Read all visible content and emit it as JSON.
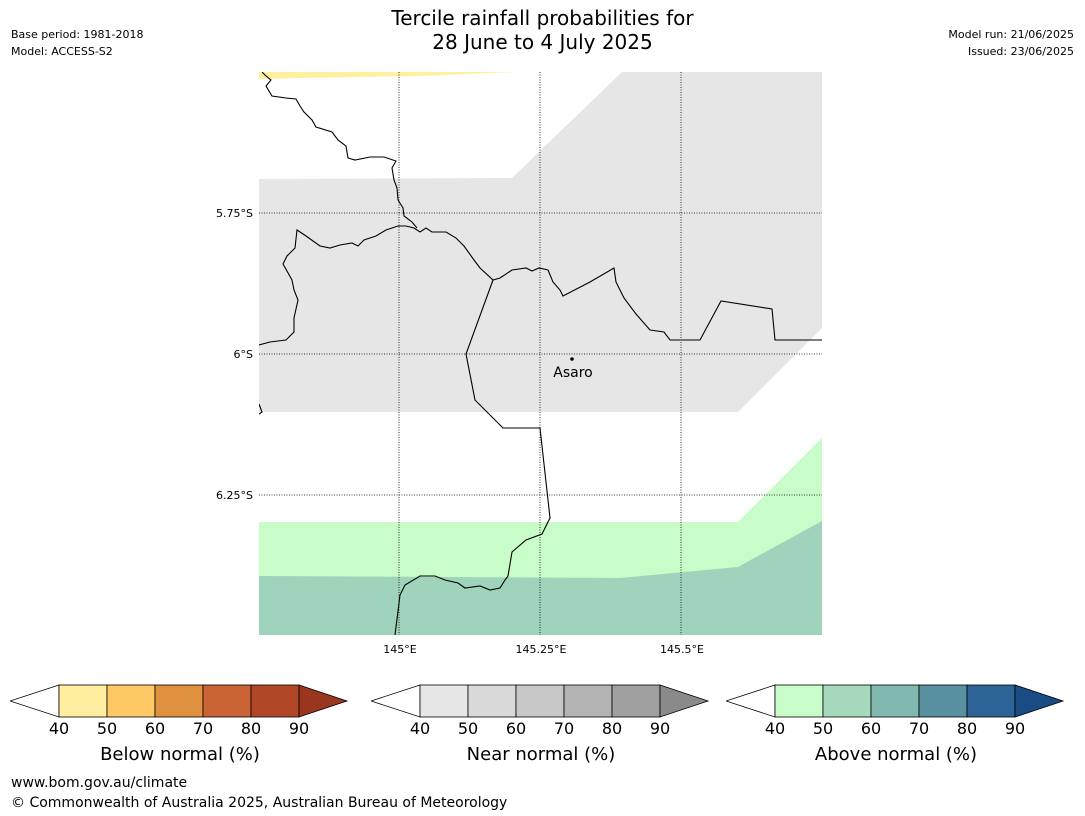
{
  "header": {
    "title_line1": "Tercile rainfall probabilities for",
    "title_line2": "28 June to 4 July 2025",
    "base_period": "Base period: 1981-2018",
    "model": "Model: ACCESS-S2",
    "model_run": "Model run: 21/06/2025",
    "issued": "Issued: 23/06/2025"
  },
  "map": {
    "lat_labels": [
      "5.75°S",
      "6°S",
      "6.25°S"
    ],
    "lon_labels": [
      "145°E",
      "145.25°E",
      "145.5°E"
    ],
    "place": "Asaro",
    "colors": {
      "below_40_50": "#fff0a0",
      "near_40_50": "#e6e6e6",
      "above_40_50": "#c8fcc8",
      "above_50_60": "#a0d3bb"
    }
  },
  "colorbars": [
    {
      "label": "Below normal (%)",
      "ticks": [
        "40",
        "50",
        "60",
        "70",
        "80",
        "90"
      ],
      "colors": [
        "#ffeda0",
        "#fec965",
        "#e0913f",
        "#cb6434",
        "#b04828"
      ],
      "over_color": "#9a3520"
    },
    {
      "label": "Near normal (%)",
      "ticks": [
        "40",
        "50",
        "60",
        "70",
        "80",
        "90"
      ],
      "colors": [
        "#e6e6e6",
        "#d9d9d9",
        "#c8c8c8",
        "#b4b4b4",
        "#a0a0a0"
      ],
      "over_color": "#8a8a8a"
    },
    {
      "label": "Above normal (%)",
      "ticks": [
        "40",
        "50",
        "60",
        "70",
        "80",
        "90"
      ],
      "colors": [
        "#c8fcc8",
        "#a6d9bb",
        "#81b8b0",
        "#5a91a0",
        "#2d6497"
      ],
      "over_color": "#194b85"
    }
  ],
  "footer": {
    "url": "www.bom.gov.au/climate",
    "copyright": "© Commonwealth of Australia 2025, Australian Bureau of Meteorology"
  }
}
